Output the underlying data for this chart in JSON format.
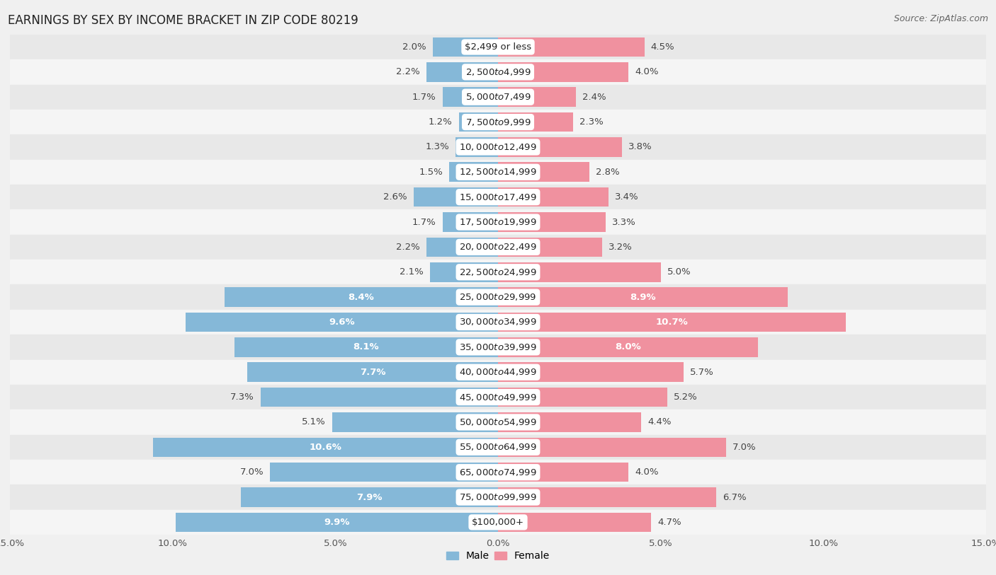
{
  "title": "EARNINGS BY SEX BY INCOME BRACKET IN ZIP CODE 80219",
  "source": "Source: ZipAtlas.com",
  "categories": [
    "$2,499 or less",
    "$2,500 to $4,999",
    "$5,000 to $7,499",
    "$7,500 to $9,999",
    "$10,000 to $12,499",
    "$12,500 to $14,999",
    "$15,000 to $17,499",
    "$17,500 to $19,999",
    "$20,000 to $22,499",
    "$22,500 to $24,999",
    "$25,000 to $29,999",
    "$30,000 to $34,999",
    "$35,000 to $39,999",
    "$40,000 to $44,999",
    "$45,000 to $49,999",
    "$50,000 to $54,999",
    "$55,000 to $64,999",
    "$65,000 to $74,999",
    "$75,000 to $99,999",
    "$100,000+"
  ],
  "male_values": [
    2.0,
    2.2,
    1.7,
    1.2,
    1.3,
    1.5,
    2.6,
    1.7,
    2.2,
    2.1,
    8.4,
    9.6,
    8.1,
    7.7,
    7.3,
    5.1,
    10.6,
    7.0,
    7.9,
    9.9
  ],
  "female_values": [
    4.5,
    4.0,
    2.4,
    2.3,
    3.8,
    2.8,
    3.4,
    3.3,
    3.2,
    5.0,
    8.9,
    10.7,
    8.0,
    5.7,
    5.2,
    4.4,
    7.0,
    4.0,
    6.7,
    4.7
  ],
  "male_color": "#85B8D8",
  "female_color": "#F0919F",
  "xlim": 15.0,
  "bg_color": "#f0f0f0",
  "row_color_even": "#e8e8e8",
  "row_color_odd": "#f5f5f5",
  "title_fontsize": 12,
  "source_fontsize": 9,
  "label_fontsize": 9.5,
  "cat_fontsize": 9.5,
  "tick_fontsize": 9.5,
  "bar_height": 0.78,
  "inside_label_threshold": 7.5,
  "inside_label_color_male": "#3a7fc1",
  "inside_label_color_female": "#d44060",
  "outside_label_color": "#444444"
}
